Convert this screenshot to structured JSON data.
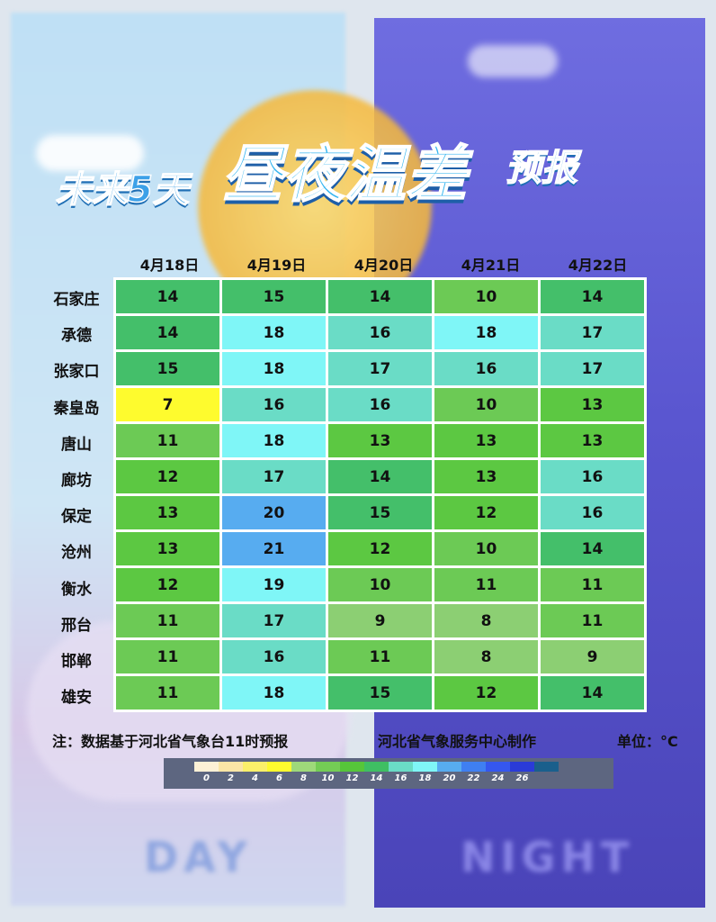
{
  "title": {
    "part1": "未来5天",
    "part2": "昼夜温差",
    "part3": "预报"
  },
  "background": {
    "left_word": "DAY",
    "right_word": "NIGHT"
  },
  "note": "注：数据基于河北省气象台11时预报",
  "producer": "河北省气象服务中心制作",
  "unit": "单位：°C",
  "chart_data": {
    "type": "heatmap",
    "columns": [
      "4月18日",
      "4月19日",
      "4月20日",
      "4月21日",
      "4月22日"
    ],
    "rows": [
      "石家庄",
      "承德",
      "张家口",
      "秦皇岛",
      "唐山",
      "廊坊",
      "保定",
      "沧州",
      "衡水",
      "邢台",
      "邯郸",
      "雄安"
    ],
    "values": [
      [
        14,
        15,
        14,
        10,
        14
      ],
      [
        14,
        18,
        16,
        18,
        17
      ],
      [
        15,
        18,
        17,
        16,
        17
      ],
      [
        7,
        16,
        16,
        10,
        13
      ],
      [
        11,
        18,
        13,
        13,
        13
      ],
      [
        12,
        17,
        14,
        13,
        16
      ],
      [
        13,
        20,
        15,
        12,
        16
      ],
      [
        13,
        21,
        12,
        10,
        14
      ],
      [
        12,
        19,
        10,
        11,
        11
      ],
      [
        11,
        17,
        9,
        8,
        11
      ],
      [
        11,
        16,
        11,
        8,
        9
      ],
      [
        11,
        18,
        15,
        12,
        14
      ]
    ],
    "legend": {
      "ticks": [
        "0",
        "2",
        "4",
        "6",
        "8",
        "10",
        "12",
        "14",
        "16",
        "18",
        "20",
        "22",
        "24",
        "26"
      ],
      "colors": [
        "#fdf1d6",
        "#fbe6a6",
        "#fbf06a",
        "#fefb2e",
        "#9ed97a",
        "#74cc55",
        "#56c63a",
        "#3fbf63",
        "#6adcc6",
        "#7ff6f7",
        "#57acf0",
        "#3f7ff2",
        "#3557ef",
        "#2a3bd8",
        "#1a5f8c"
      ]
    }
  }
}
